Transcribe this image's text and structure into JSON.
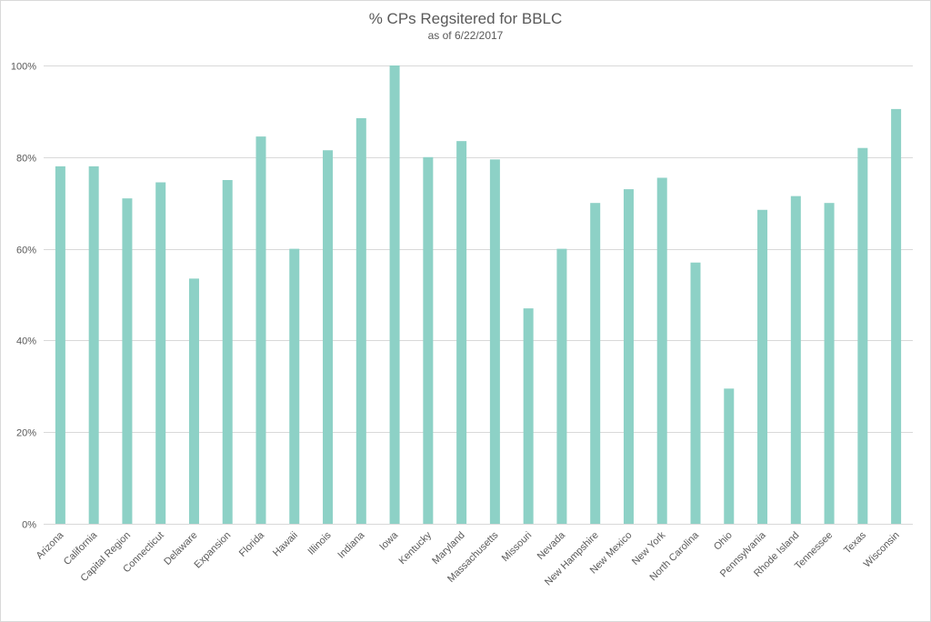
{
  "colors": {
    "bar": "#8dd1c6",
    "grid": "#d9d9d9",
    "text": "#595959"
  },
  "chart_data": {
    "type": "bar",
    "title": "% CPs Regsitered for BBLC",
    "subtitle": "as of 6/22/2017",
    "xlabel": "",
    "ylabel": "",
    "ylim": [
      0,
      100
    ],
    "yticks": [
      0,
      20,
      40,
      60,
      80,
      100
    ],
    "ytick_labels": [
      "0%",
      "20%",
      "40%",
      "60%",
      "80%",
      "100%"
    ],
    "grid": true,
    "legend": "none",
    "categories": [
      "Arizona",
      "California",
      "Capital Region",
      "Connecticut",
      "Delaware",
      "Expansion",
      "Florida",
      "Hawaii",
      "Illinois",
      "Indiana",
      "Iowa",
      "Kentucky",
      "Maryland",
      "Massachusetts",
      "Missouri",
      "Nevada",
      "New Hampshire",
      "New Mexico",
      "New York",
      "North Carolina",
      "Ohio",
      "Pennsylvania",
      "Rhode Island",
      "Tennessee",
      "Texas",
      "Wisconsin"
    ],
    "values": [
      78,
      78,
      71,
      74.5,
      53.5,
      75,
      84.5,
      60,
      81.5,
      88.5,
      100,
      80,
      83.5,
      79.5,
      47,
      60,
      70,
      73,
      75.5,
      57,
      29.5,
      68.5,
      71.5,
      70,
      82,
      90.5
    ]
  }
}
